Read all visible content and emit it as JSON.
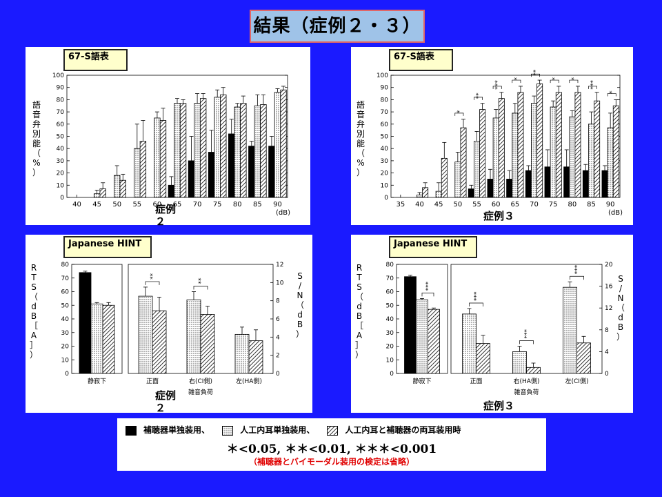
{
  "title": "結果（症例２・３）",
  "legend": {
    "hearing_aid": "補聴器単独装用、",
    "cochlear_implant": "人工内耳単独装用、",
    "bimodal": "人工内耳と補聴器の両耳装用時"
  },
  "significance": "＊<0.05, ＊＊<0.01, ＊＊＊<0.001",
  "note": "（補聴器とバイモーダル装用の検定は省略）",
  "panels": {
    "tl": {
      "tag": "67-S語表",
      "case_label": "症例２"
    },
    "tr": {
      "tag": "67-S語表",
      "case_label": "症例３"
    },
    "bl": {
      "tag": "Japanese HINT",
      "case_label": "症例２"
    },
    "br": {
      "tag": "Japanese HINT",
      "case_label": "症例３"
    }
  },
  "colors": {
    "background": "#1a1aff",
    "title_bg": "#9fc3e8",
    "tag_bg": "#ffffcc",
    "note": "#e00000"
  },
  "chart_data": [
    {
      "id": "tl",
      "type": "bar",
      "ylabel": "語音弁別能（%）",
      "xunit": "(dB)",
      "ylim": [
        0,
        100
      ],
      "yticks": [
        0,
        10,
        20,
        30,
        40,
        50,
        60,
        70,
        80,
        90,
        100
      ],
      "categories": [
        "40",
        "45",
        "50",
        "55",
        "60",
        "65",
        "70",
        "75",
        "80",
        "85",
        "90"
      ],
      "series": [
        {
          "key": "hearing_aid",
          "values": [
            0,
            0,
            0,
            0,
            0,
            10,
            30,
            37,
            52,
            42,
            42
          ],
          "err": [
            0,
            0,
            0,
            0,
            0,
            7,
            20,
            18,
            12,
            4,
            8
          ]
        },
        {
          "key": "cochlear_implant",
          "values": [
            0,
            3,
            18,
            40,
            65,
            77,
            77,
            82,
            74,
            75,
            86
          ],
          "err": [
            0,
            3,
            8,
            20,
            5,
            4,
            8,
            6,
            3,
            9,
            3
          ]
        },
        {
          "key": "bimodal",
          "values": [
            0,
            7,
            14,
            46,
            63,
            77,
            81,
            84,
            77,
            76,
            88
          ],
          "err": [
            0,
            5,
            5,
            17,
            10,
            3,
            4,
            6,
            6,
            8,
            3
          ]
        }
      ],
      "sig": []
    },
    {
      "id": "tr",
      "type": "bar",
      "ylabel": "語音弁別能（%）",
      "xunit": "(dB)",
      "ylim": [
        0,
        100
      ],
      "yticks": [
        0,
        10,
        20,
        30,
        40,
        50,
        60,
        70,
        80,
        90,
        100
      ],
      "categories": [
        "35",
        "40",
        "45",
        "50",
        "55",
        "60",
        "65",
        "70",
        "75",
        "80",
        "85",
        "90"
      ],
      "series": [
        {
          "key": "hearing_aid",
          "values": [
            0,
            0,
            0,
            0,
            7,
            15,
            15,
            22,
            25,
            25,
            22,
            22
          ],
          "err": [
            0,
            0,
            0,
            0,
            3,
            8,
            7,
            4,
            14,
            14,
            5,
            4
          ]
        },
        {
          "key": "cochlear_implant",
          "values": [
            0,
            2,
            5,
            29,
            46,
            65,
            69,
            77,
            74,
            66,
            60,
            57
          ],
          "err": [
            0,
            2,
            7,
            8,
            8,
            7,
            8,
            6,
            5,
            5,
            10,
            12
          ]
        },
        {
          "key": "bimodal",
          "values": [
            0,
            8,
            32,
            57,
            72,
            81,
            86,
            93,
            86,
            86,
            79,
            75
          ],
          "err": [
            0,
            4,
            13,
            7,
            5,
            5,
            5,
            3,
            5,
            5,
            7,
            5
          ]
        }
      ],
      "sig": [
        {
          "cat": 3,
          "text": "*"
        },
        {
          "cat": 4,
          "text": "**"
        },
        {
          "cat": 5,
          "text": "***"
        },
        {
          "cat": 6,
          "text": "*"
        },
        {
          "cat": 7,
          "text": "**"
        },
        {
          "cat": 8,
          "text": "*"
        },
        {
          "cat": 9,
          "text": "*"
        },
        {
          "cat": 10,
          "text": "***"
        },
        {
          "cat": 11,
          "text": "*"
        }
      ]
    },
    {
      "id": "bl",
      "type": "bar",
      "ylabel_left": "RTS（dB［A］）",
      "ylabel_right": "S/N（dB）",
      "ylim_left": [
        0,
        80
      ],
      "yticks_left": [
        0,
        10,
        20,
        30,
        40,
        50,
        60,
        70,
        80
      ],
      "ylim_right": [
        0,
        12
      ],
      "yticks_right": [
        0,
        2,
        4,
        6,
        8,
        10,
        12
      ],
      "quiet": {
        "label": "静寂下",
        "values": [
          74,
          51,
          50
        ],
        "err": [
          1,
          1,
          2
        ]
      },
      "noise": {
        "label": "雑音負荷",
        "groups": [
          {
            "label": "正面",
            "values": [
              8.5,
              6.9
            ],
            "err": [
              1.0,
              1.5
            ]
          },
          {
            "label": "右(CI側)",
            "values": [
              8.1,
              6.5
            ],
            "err": [
              0.9,
              0.9
            ]
          },
          {
            "label": "左(HA側)",
            "values": [
              4.3,
              3.6
            ],
            "err": [
              0.8,
              1.2
            ]
          }
        ]
      },
      "sig": [
        {
          "group": "quiet",
          "text": "",
          "show": false
        },
        {
          "group": 0,
          "text": "**"
        },
        {
          "group": 1,
          "text": "**"
        }
      ]
    },
    {
      "id": "br",
      "type": "bar",
      "ylabel_left": "RTS（dB［A］）",
      "ylabel_right": "S/N（dB）",
      "ylim_left": [
        0,
        80
      ],
      "yticks_left": [
        0,
        10,
        20,
        30,
        40,
        50,
        60,
        70,
        80
      ],
      "ylim_right": [
        0,
        20
      ],
      "yticks_right": [
        0,
        4,
        8,
        12,
        16,
        20
      ],
      "quiet": {
        "label": "静寂下",
        "values": [
          71,
          54,
          47
        ],
        "err": [
          1,
          1,
          1
        ]
      },
      "noise": {
        "label": "雑音負荷",
        "groups": [
          {
            "label": "正面",
            "values": [
              10.9,
              5.5
            ],
            "err": [
              1.0,
              1.5
            ]
          },
          {
            "label": "右(HA側)",
            "values": [
              4.0,
              1.1
            ],
            "err": [
              1.0,
              0.8
            ]
          },
          {
            "label": "左(CI側)",
            "values": [
              15.8,
              5.6
            ],
            "err": [
              1.0,
              1.2
            ]
          }
        ]
      },
      "sig": [
        {
          "group": "quiet",
          "text": "***"
        },
        {
          "group": 0,
          "text": "***"
        },
        {
          "group": 1,
          "text": "***"
        },
        {
          "group": 2,
          "text": "***"
        }
      ]
    }
  ]
}
